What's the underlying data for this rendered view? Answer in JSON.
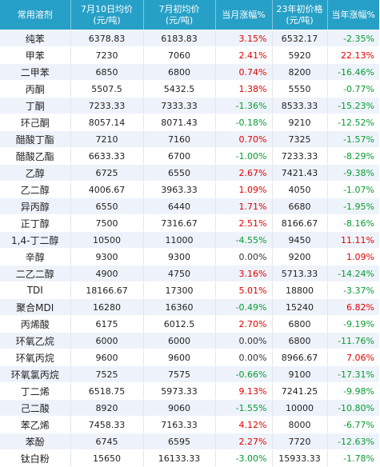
{
  "header": {
    "col1": "常用溶剂",
    "col2_line1": "7月10日均价",
    "col2_line2": "(元/吨)",
    "col3_line1": "7月初均价",
    "col3_line2": "(元/吨)",
    "col4": "当月涨幅%",
    "col5_line1": "23年初价格",
    "col5_line2": "(元/吨)",
    "col6": "当年涨幅%"
  },
  "colors": {
    "header_bg": "#27a0c7",
    "rise": "#e40000",
    "fall": "#0a9a30",
    "stripe": "#eef3fb"
  },
  "rows": [
    {
      "name": "纯苯",
      "p710": "6378.83",
      "pjul": "6183.83",
      "mchg": "3.15%",
      "m_dir": "pos",
      "p23": "6532.17",
      "ychg": "-2.35%",
      "y_dir": "neg"
    },
    {
      "name": "甲苯",
      "p710": "7230",
      "pjul": "7060",
      "mchg": "2.41%",
      "m_dir": "pos",
      "p23": "5920",
      "ychg": "22.13%",
      "y_dir": "pos"
    },
    {
      "name": "二甲苯",
      "p710": "6850",
      "pjul": "6800",
      "mchg": "0.74%",
      "m_dir": "pos",
      "p23": "8200",
      "ychg": "-16.46%",
      "y_dir": "neg"
    },
    {
      "name": "丙酮",
      "p710": "5507.5",
      "pjul": "5432.5",
      "mchg": "1.38%",
      "m_dir": "pos",
      "p23": "5550",
      "ychg": "-0.77%",
      "y_dir": "neg"
    },
    {
      "name": "丁酮",
      "p710": "7233.33",
      "pjul": "7333.33",
      "mchg": "-1.36%",
      "m_dir": "neg",
      "p23": "8533.33",
      "ychg": "-15.23%",
      "y_dir": "neg"
    },
    {
      "name": "环己酮",
      "p710": "8057.14",
      "pjul": "8071.43",
      "mchg": "-0.18%",
      "m_dir": "neg",
      "p23": "9210",
      "ychg": "-12.52%",
      "y_dir": "neg"
    },
    {
      "name": "醋酸丁酯",
      "p710": "7210",
      "pjul": "7160",
      "mchg": "0.70%",
      "m_dir": "pos",
      "p23": "7325",
      "ychg": "-1.57%",
      "y_dir": "neg"
    },
    {
      "name": "醋酸乙酯",
      "p710": "6633.33",
      "pjul": "6700",
      "mchg": "-1.00%",
      "m_dir": "neg",
      "p23": "7233.33",
      "ychg": "-8.29%",
      "y_dir": "neg"
    },
    {
      "name": "乙醇",
      "p710": "6725",
      "pjul": "6550",
      "mchg": "2.67%",
      "m_dir": "pos",
      "p23": "7421.43",
      "ychg": "-9.38%",
      "y_dir": "neg"
    },
    {
      "name": "乙二醇",
      "p710": "4006.67",
      "pjul": "3963.33",
      "mchg": "1.09%",
      "m_dir": "pos",
      "p23": "4050",
      "ychg": "-1.07%",
      "y_dir": "neg"
    },
    {
      "name": "异丙醇",
      "p710": "6550",
      "pjul": "6440",
      "mchg": "1.71%",
      "m_dir": "pos",
      "p23": "6680",
      "ychg": "-1.95%",
      "y_dir": "neg"
    },
    {
      "name": "正丁醇",
      "p710": "7500",
      "pjul": "7316.67",
      "mchg": "2.51%",
      "m_dir": "pos",
      "p23": "8166.67",
      "ychg": "-8.16%",
      "y_dir": "neg"
    },
    {
      "name": "1,4-丁二醇",
      "p710": "10500",
      "pjul": "11000",
      "mchg": "-4.55%",
      "m_dir": "neg",
      "p23": "9450",
      "ychg": "11.11%",
      "y_dir": "pos"
    },
    {
      "name": "辛醇",
      "p710": "9300",
      "pjul": "9300",
      "mchg": "0.00%",
      "m_dir": "zero",
      "p23": "9200",
      "ychg": "1.09%",
      "y_dir": "pos"
    },
    {
      "name": "二乙二醇",
      "p710": "4900",
      "pjul": "4750",
      "mchg": "3.16%",
      "m_dir": "pos",
      "p23": "5713.33",
      "ychg": "-14.24%",
      "y_dir": "neg"
    },
    {
      "name": "TDI",
      "p710": "18166.67",
      "pjul": "17300",
      "mchg": "5.01%",
      "m_dir": "pos",
      "p23": "18800",
      "ychg": "-3.37%",
      "y_dir": "neg"
    },
    {
      "name": "聚合MDI",
      "p710": "16280",
      "pjul": "16360",
      "mchg": "-0.49%",
      "m_dir": "neg",
      "p23": "15240",
      "ychg": "6.82%",
      "y_dir": "pos"
    },
    {
      "name": "丙烯酸",
      "p710": "6175",
      "pjul": "6012.5",
      "mchg": "2.70%",
      "m_dir": "pos",
      "p23": "6800",
      "ychg": "-9.19%",
      "y_dir": "neg"
    },
    {
      "name": "环氧乙烷",
      "p710": "6000",
      "pjul": "6000",
      "mchg": "0.00%",
      "m_dir": "zero",
      "p23": "6800",
      "ychg": "-11.76%",
      "y_dir": "neg"
    },
    {
      "name": "环氧丙烷",
      "p710": "9600",
      "pjul": "9600",
      "mchg": "0.00%",
      "m_dir": "zero",
      "p23": "8966.67",
      "ychg": "7.06%",
      "y_dir": "pos"
    },
    {
      "name": "环氧氯丙烷",
      "p710": "7525",
      "pjul": "7575",
      "mchg": "-0.66%",
      "m_dir": "neg",
      "p23": "9100",
      "ychg": "-17.31%",
      "y_dir": "neg"
    },
    {
      "name": "丁二烯",
      "p710": "6518.75",
      "pjul": "5973.33",
      "mchg": "9.13%",
      "m_dir": "pos",
      "p23": "7241.25",
      "ychg": "-9.98%",
      "y_dir": "neg"
    },
    {
      "name": "己二酸",
      "p710": "8920",
      "pjul": "9060",
      "mchg": "-1.55%",
      "m_dir": "neg",
      "p23": "10000",
      "ychg": "-10.80%",
      "y_dir": "neg"
    },
    {
      "name": "苯乙烯",
      "p710": "7458.33",
      "pjul": "7163.33",
      "mchg": "4.12%",
      "m_dir": "pos",
      "p23": "8000",
      "ychg": "-6.77%",
      "y_dir": "neg"
    },
    {
      "name": "苯酚",
      "p710": "6745",
      "pjul": "6595",
      "mchg": "2.27%",
      "m_dir": "pos",
      "p23": "7720",
      "ychg": "-12.63%",
      "y_dir": "neg"
    },
    {
      "name": "钛白粉",
      "p710": "15650",
      "pjul": "16133.33",
      "mchg": "-3.00%",
      "m_dir": "neg",
      "p23": "15933.33",
      "ychg": "-1.78%",
      "y_dir": "neg"
    }
  ]
}
